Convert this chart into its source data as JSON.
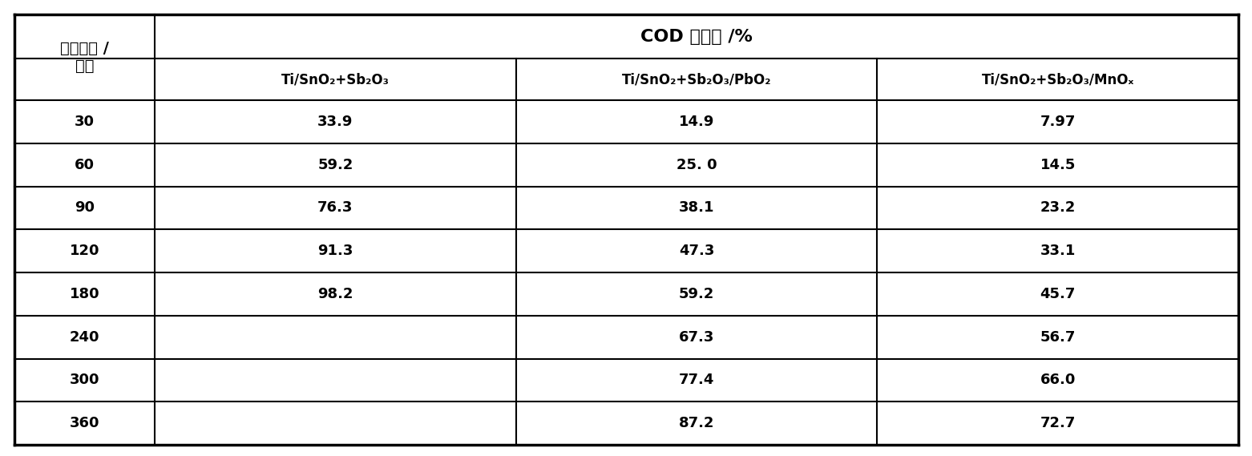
{
  "header_col": "电解时间 /\n分钟",
  "header_main": "COD 下降率 /%",
  "col_headers": [
    "Ti/SnO₂+Sb₂O₃",
    "Ti/SnO₂+Sb₂O₃/PbO₂",
    "Ti/SnO₂+Sb₂O₃/MnOₓ"
  ],
  "row_labels": [
    "30",
    "60",
    "90",
    "120",
    "180",
    "240",
    "300",
    "360"
  ],
  "data": [
    [
      "33.9",
      "14.9",
      "7.97"
    ],
    [
      "59.2",
      "25. 0",
      "14.5"
    ],
    [
      "76.3",
      "38.1",
      "23.2"
    ],
    [
      "91.3",
      "47.3",
      "33.1"
    ],
    [
      "98.2",
      "59.2",
      "45.7"
    ],
    [
      "",
      "67.3",
      "56.7"
    ],
    [
      "",
      "77.4",
      "66.0"
    ],
    [
      "",
      "87.2",
      "72.7"
    ]
  ],
  "bg_color": "#ffffff",
  "line_color": "#000000",
  "text_color": "#000000",
  "font_size": 13,
  "header_font_size": 14
}
